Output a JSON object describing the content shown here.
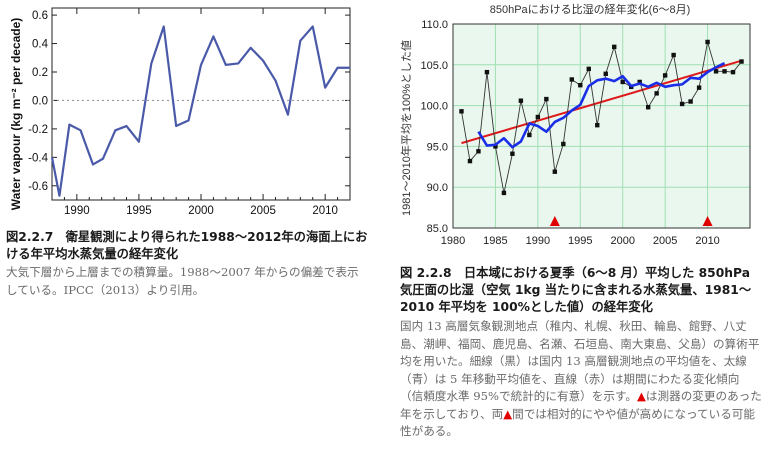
{
  "chart_data": [
    {
      "type": "line",
      "title": "",
      "xlabel": "",
      "ylabel": "Water vapour (kg m⁻² per decade)",
      "xlim": [
        1988,
        2012
      ],
      "ylim": [
        -0.7,
        0.65
      ],
      "xticks": [
        1990,
        1995,
        2000,
        2005,
        2010
      ],
      "xtick_labels": [
        "1990",
        "1995",
        "2000",
        "2005",
        "2010"
      ],
      "yticks": [
        -0.6,
        -0.4,
        -0.2,
        0.0,
        0.2,
        0.4,
        0.6
      ],
      "ytick_labels": [
        "-0.6",
        "-0.4",
        "-0.2",
        "0.0",
        "0.2",
        "0.4",
        "0.6"
      ],
      "grid": false,
      "legend": "none",
      "zero_line": "dotted",
      "line_color": "#4a5aa8",
      "series": [
        {
          "x": [
            1988,
            1988.6,
            1989.4,
            1990.3,
            1991.3,
            1992.1,
            1993.1,
            1994,
            1995,
            1996,
            1997,
            1998,
            1999,
            2000,
            2001,
            2002,
            2003,
            2004,
            2005,
            2006,
            2007,
            2008,
            2009,
            2010,
            2011,
            2012
          ],
          "values": [
            -0.4,
            -0.67,
            -0.17,
            -0.21,
            -0.45,
            -0.41,
            -0.21,
            -0.18,
            -0.29,
            0.26,
            0.52,
            -0.18,
            -0.14,
            0.25,
            0.45,
            0.25,
            0.26,
            0.37,
            0.28,
            0.14,
            -0.1,
            0.42,
            0.52,
            0.09,
            0.23,
            0.23
          ]
        }
      ]
    },
    {
      "type": "line",
      "title": "850hPaにおける比湿の経年変化(6〜8月)",
      "xlabel": "",
      "ylabel": "1981〜2010年平均を100%とした値",
      "xlim": [
        1980,
        2015
      ],
      "ylim": [
        85.0,
        110.0
      ],
      "xticks": [
        1980,
        1985,
        1990,
        1995,
        2000,
        2005,
        2010
      ],
      "xtick_labels": [
        "1980",
        "1985",
        "1990",
        "1995",
        "2000",
        "2005",
        "2010"
      ],
      "yticks": [
        85.0,
        90.0,
        95.0,
        100.0,
        105.0,
        110.0
      ],
      "ytick_labels": [
        "85.0",
        "90.0",
        "95.0",
        "100.0",
        "105.0",
        "110.0"
      ],
      "grid": true,
      "legend": "none",
      "background_color": "#e9f7ee",
      "grid_color": "#9fe0b2",
      "markers_x": [
        1992,
        2010
      ],
      "marker_color": "#e00000",
      "series": [
        {
          "style": "thin-black-with-points",
          "color": "#333333",
          "x": [
            1981,
            1982,
            1983,
            1984,
            1985,
            1986,
            1987,
            1988,
            1989,
            1990,
            1991,
            1992,
            1993,
            1994,
            1995,
            1996,
            1997,
            1998,
            1999,
            2000,
            2001,
            2002,
            2003,
            2004,
            2005,
            2006,
            2007,
            2008,
            2009,
            2010,
            2011,
            2012,
            2013,
            2014
          ],
          "values": [
            99.3,
            93.2,
            94.4,
            104.1,
            95.0,
            89.3,
            94.1,
            100.6,
            96.4,
            98.6,
            100.8,
            91.9,
            95.3,
            103.2,
            102.5,
            104.5,
            97.6,
            103.9,
            107.2,
            102.9,
            102.3,
            102.9,
            99.8,
            101.5,
            103.7,
            106.2,
            100.2,
            100.5,
            102.2,
            107.8,
            104.2,
            104.2,
            104.1,
            105.4
          ]
        },
        {
          "style": "thick-blue-5yr-moving-average",
          "color": "#1a2ee8",
          "x": [
            1983,
            1984,
            1985,
            1986,
            1987,
            1988,
            1989,
            1990,
            1991,
            1992,
            1993,
            1994,
            1995,
            1996,
            1997,
            1998,
            1999,
            2000,
            2001,
            2002,
            2003,
            2004,
            2005,
            2006,
            2007,
            2008,
            2009,
            2010,
            2011,
            2012
          ],
          "values": [
            96.8,
            95.1,
            95.2,
            96.0,
            94.9,
            95.6,
            97.8,
            97.5,
            96.8,
            98.0,
            98.5,
            99.4,
            100.1,
            102.4,
            103.1,
            103.3,
            103.0,
            103.6,
            102.4,
            102.7,
            102.3,
            102.8,
            102.3,
            102.5,
            102.6,
            103.4,
            103.3,
            104.1,
            104.7,
            105.2
          ]
        },
        {
          "style": "red-linear-trend",
          "color": "#e01a1a",
          "x": [
            1981,
            2014
          ],
          "values": [
            95.4,
            105.5
          ]
        }
      ]
    }
  ],
  "left_caption": {
    "title": "図2.2.7　衛星観測により得られた1988〜2012年の海面上における年平均水蒸気量の経年変化",
    "body": "大気下層から上層までの積算量。1988〜2007 年からの偏差で表示している。IPCC（2013）より引用。"
  },
  "right_caption": {
    "title": "図 2.2.8　日本域における夏季（6〜8 月）平均した 850hPa 気圧面の比湿（空気 1kg 当たりに含まれる水蒸気量、1981〜2010 年平均を 100%とした値）の経年変化",
    "body_1": "国内 13 高層気象観測地点（稚内、札幌、秋田、輪島、館野、八丈島、潮岬、福岡、鹿児島、名瀬、石垣島、南大東島、父島）の算術平均を用いた。細線（黒）は国内 13 高層観測地点の平均値を、太線（青）は 5 年移動平均値を、直線（赤）は期間にわたる変化傾向（信頼度水準 95%で統計的に有意）を示す。",
    "triangle": "▲",
    "body_2": "は測器の変更のあった年を示しており、両",
    "body_3": "間では相対的にやや値が高めになっている可能性がある。"
  }
}
